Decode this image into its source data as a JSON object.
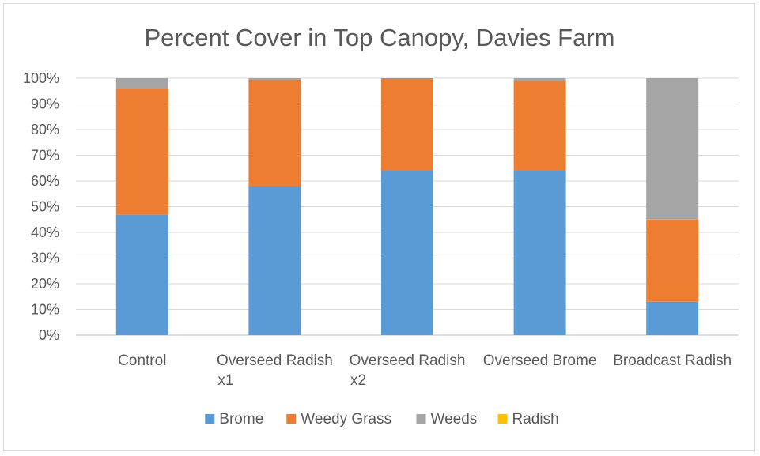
{
  "chart_data": {
    "type": "bar",
    "stacked": true,
    "percent_stacked": true,
    "title": "Percent Cover in Top Canopy, Davies Farm",
    "xlabel": "",
    "ylabel": "",
    "ylim": [
      0,
      100
    ],
    "y_ticks": [
      "0%",
      "10%",
      "20%",
      "30%",
      "40%",
      "50%",
      "60%",
      "70%",
      "80%",
      "90%",
      "100%"
    ],
    "grid": true,
    "legend_position": "bottom",
    "categories": [
      [
        "Control"
      ],
      [
        "Overseed Radish",
        "x1"
      ],
      [
        "Overseed Radish",
        "x2"
      ],
      [
        "Overseed Brome"
      ],
      [
        "Broadcast Radish"
      ]
    ],
    "series": [
      {
        "name": "Brome",
        "color": "#5b9bd5",
        "values": [
          47,
          58,
          64,
          64,
          13
        ]
      },
      {
        "name": "Weedy Grass",
        "color": "#ed7d31",
        "values": [
          49,
          41.5,
          36,
          35,
          32
        ]
      },
      {
        "name": "Weeds",
        "color": "#a5a5a5",
        "values": [
          4,
          0.5,
          0,
          1,
          55
        ]
      },
      {
        "name": "Radish",
        "color": "#ffc000",
        "values": [
          0,
          0,
          0,
          0,
          0
        ]
      }
    ]
  }
}
